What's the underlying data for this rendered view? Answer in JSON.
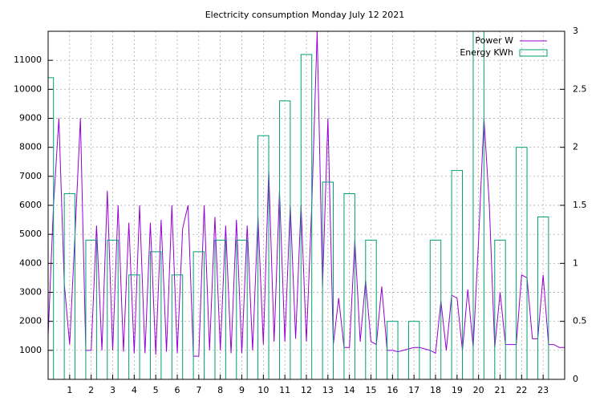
{
  "chart_data": {
    "type": "line-boxes",
    "title": "Electricity consumption Monday July 12 2021",
    "xlim": [
      0,
      24
    ],
    "xticks": [
      1,
      2,
      3,
      4,
      5,
      6,
      7,
      8,
      9,
      10,
      11,
      12,
      13,
      14,
      15,
      16,
      17,
      18,
      19,
      20,
      21,
      22,
      23
    ],
    "ylim": [
      0,
      12000
    ],
    "yticks": [
      1000,
      2000,
      3000,
      4000,
      5000,
      6000,
      7000,
      8000,
      9000,
      10000,
      11000
    ],
    "y2lim": [
      0,
      3
    ],
    "y2ticks": [
      0,
      0.5,
      1,
      1.5,
      2,
      2.5,
      3
    ],
    "grid": true,
    "legend": "top-right",
    "series": [
      {
        "name": "Power W",
        "color": "#9400d3",
        "kind": "line",
        "x": [
          0,
          0.25,
          0.5,
          0.75,
          1,
          1.25,
          1.5,
          1.75,
          2,
          2.25,
          2.5,
          2.75,
          3,
          3.25,
          3.5,
          3.75,
          4,
          4.25,
          4.5,
          4.75,
          5,
          5.25,
          5.5,
          5.75,
          6,
          6.25,
          6.5,
          6.75,
          7,
          7.25,
          7.5,
          7.75,
          8,
          8.25,
          8.5,
          8.75,
          9,
          9.25,
          9.5,
          9.75,
          10,
          10.25,
          10.5,
          10.75,
          11,
          11.25,
          11.5,
          11.75,
          12,
          12.25,
          12.5,
          12.75,
          13,
          13.25,
          13.5,
          13.75,
          14,
          14.25,
          14.5,
          14.75,
          15,
          15.25,
          15.5,
          15.75,
          16,
          16.25,
          16.5,
          16.75,
          17,
          17.25,
          17.5,
          17.75,
          18,
          18.25,
          18.5,
          18.75,
          19,
          19.25,
          19.5,
          19.75,
          20,
          20.25,
          20.5,
          20.75,
          21,
          21.25,
          21.5,
          21.75,
          22,
          22.25,
          22.5,
          22.75,
          23,
          23.25,
          23.5,
          23.75,
          24
        ],
        "values": [
          1500,
          6000,
          9000,
          3300,
          1200,
          5000,
          9000,
          1000,
          1000,
          5300,
          1000,
          6500,
          1000,
          6000,
          950,
          5400,
          900,
          6000,
          900,
          5400,
          850,
          5500,
          950,
          6000,
          900,
          5200,
          6000,
          800,
          800,
          6000,
          1000,
          5600,
          1000,
          5300,
          900,
          5500,
          900,
          5300,
          1000,
          5600,
          1200,
          7200,
          1300,
          6500,
          1300,
          6000,
          1400,
          6000,
          1300,
          6000,
          12000,
          3200,
          9000,
          1200,
          2800,
          1100,
          1100,
          4800,
          1300,
          3400,
          1300,
          1200,
          3200,
          1000,
          1000,
          950,
          1000,
          1050,
          1100,
          1100,
          1050,
          1000,
          900,
          2700,
          1000,
          2900,
          2800,
          1000,
          3100,
          1100,
          4800,
          9000,
          6000,
          1100,
          3000,
          1200,
          1200,
          1200,
          3600,
          3500,
          1400,
          1400,
          3600,
          1200,
          1200,
          1100,
          1100
        ]
      },
      {
        "name": "Energy KWh",
        "color": "#009e73",
        "kind": "boxes",
        "axis": "y2",
        "x": [
          0,
          1,
          2,
          3,
          4,
          5,
          6,
          7,
          8,
          9,
          10,
          11,
          12,
          13,
          14,
          15,
          16,
          17,
          18,
          19,
          20,
          21,
          22,
          23
        ],
        "values": [
          2.6,
          1.6,
          1.2,
          1.2,
          0.9,
          1.1,
          0.9,
          1.1,
          1.2,
          1.2,
          2.1,
          2.4,
          2.8,
          1.7,
          1.6,
          1.2,
          0.5,
          0.5,
          1.2,
          1.8,
          3.0,
          1.2,
          2.0,
          1.4
        ]
      }
    ]
  }
}
